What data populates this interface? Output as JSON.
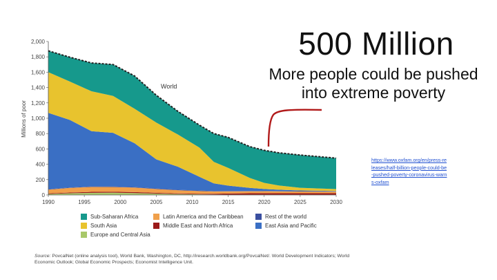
{
  "slide": {
    "headline": "500 Million",
    "subheadline": "More people could be pushed into extreme poverty",
    "link_text": "https://www.oxfam.org/en/press-releases/half-billion-people-could-be-pushed-poverty-coronavirus-warns-oxfam",
    "source_label": "Source:",
    "source_text": "PovcalNet (online analysis tool), World Bank, Washington, DC, http://iresearch.worldbank.org/PovcalNet/. World Development Indicators; World Economic Outlook; Global Economic Prospects; Economist Intelligence Unit.",
    "arrow_color": "#b11a1a"
  },
  "chart_data": {
    "type": "area",
    "stacked": true,
    "ylabel": "Millions of poor",
    "xlabel": "",
    "xlim": [
      1990,
      2030
    ],
    "ylim": [
      0,
      2000
    ],
    "x_ticks": [
      1990,
      1995,
      2000,
      2005,
      2010,
      2015,
      2020,
      2025,
      2030
    ],
    "y_ticks": [
      0,
      200,
      400,
      600,
      800,
      1000,
      1200,
      1400,
      1600,
      1800,
      2000
    ],
    "y_tick_labels": [
      "0",
      "200",
      "400",
      "600",
      "800",
      "1,000",
      "1,200",
      "1,400",
      "1,600",
      "1,800",
      "2,000"
    ],
    "world_label": "World",
    "x": [
      1990,
      1993,
      1996,
      1999,
      2002,
      2005,
      2008,
      2011,
      2013,
      2015,
      2018,
      2020,
      2022,
      2025,
      2030
    ],
    "series": [
      {
        "name": "Europe and Central Asia",
        "color": "#a8c86a",
        "values": [
          12,
          22,
          28,
          30,
          25,
          18,
          12,
          8,
          6,
          5,
          4,
          4,
          3,
          3,
          3
        ]
      },
      {
        "name": "Middle East and North Africa",
        "color": "#9b1a1a",
        "values": [
          8,
          10,
          12,
          12,
          12,
          10,
          8,
          8,
          10,
          14,
          18,
          20,
          20,
          20,
          20
        ]
      },
      {
        "name": "Latin America and the Caribbean",
        "color": "#f0a04b",
        "values": [
          50,
          60,
          65,
          62,
          60,
          50,
          42,
          35,
          30,
          28,
          26,
          25,
          24,
          22,
          20
        ]
      },
      {
        "name": "Rest of the world",
        "color": "#3a4fa0",
        "values": [
          5,
          5,
          6,
          6,
          6,
          6,
          6,
          6,
          5,
          5,
          4,
          4,
          4,
          4,
          4
        ]
      },
      {
        "name": "East Asia and Pacific",
        "color": "#3a6fc4",
        "values": [
          995,
          880,
          720,
          700,
          570,
          380,
          300,
          180,
          100,
          70,
          40,
          25,
          18,
          10,
          5
        ]
      },
      {
        "name": "South Asia",
        "color": "#e8c32e",
        "values": [
          530,
          500,
          520,
          480,
          450,
          480,
          420,
          380,
          280,
          230,
          130,
          80,
          55,
          35,
          25
        ]
      },
      {
        "name": "Sub-Saharan Africa",
        "color": "#16998c",
        "values": [
          278,
          318,
          369,
          410,
          427,
          356,
          302,
          293,
          369,
          398,
          408,
          424,
          426,
          426,
          403
        ]
      }
    ],
    "legend": {
      "placement": "bottom",
      "order": [
        "Sub-Saharan Africa",
        "Latin America and the Caribbean",
        "Rest of the world",
        "South Asia",
        "Middle East and North Africa",
        "East Asia and Pacific",
        "Europe and Central Asia"
      ]
    }
  }
}
